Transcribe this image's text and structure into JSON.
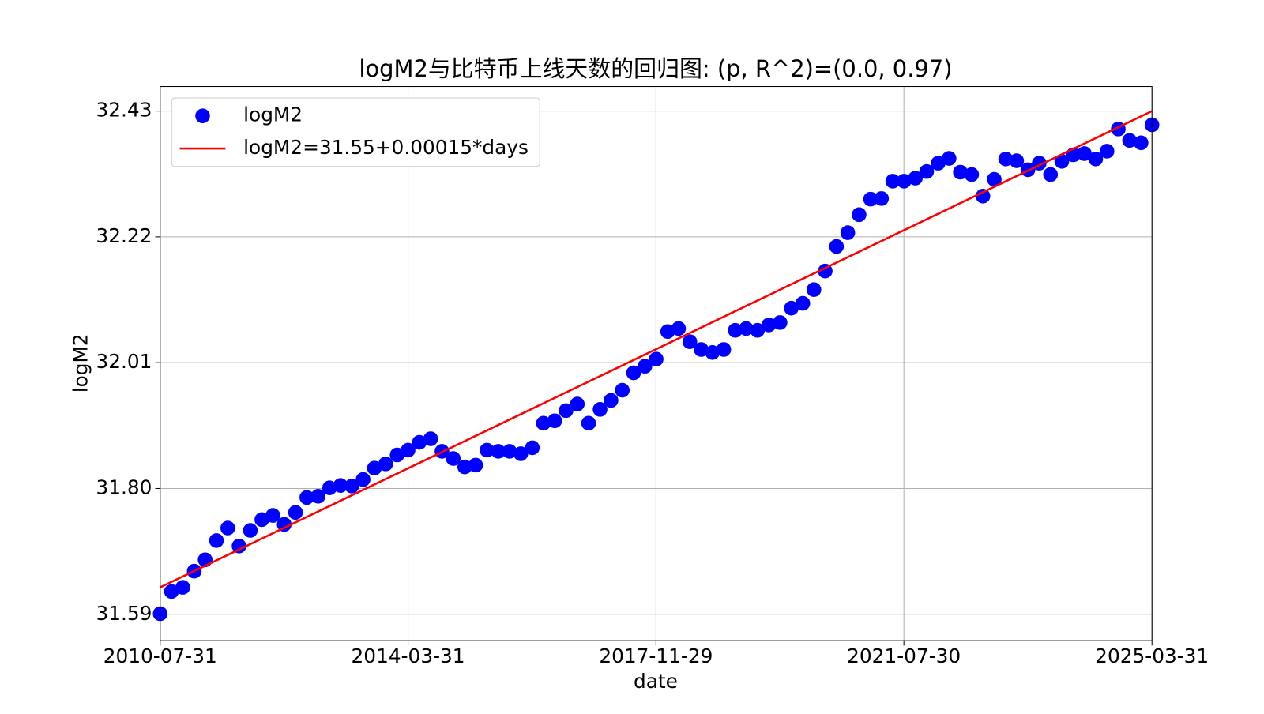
{
  "chart_data": {
    "type": "scatter",
    "title": "logM2与比特币上线天数的回归图: (p, R^2)=(0.0, 0.97)",
    "x_label": "date",
    "y_label": "logM2",
    "x": [
      "2010-07-31",
      "2010-09-30",
      "2010-11-30",
      "2011-01-31",
      "2011-03-31",
      "2011-05-31",
      "2011-07-31",
      "2011-09-30",
      "2011-11-30",
      "2012-01-31",
      "2012-03-31",
      "2012-05-31",
      "2012-07-31",
      "2012-09-30",
      "2012-11-30",
      "2013-01-31",
      "2013-03-31",
      "2013-05-31",
      "2013-07-31",
      "2013-09-30",
      "2013-11-30",
      "2014-01-31",
      "2014-03-31",
      "2014-05-31",
      "2014-07-31",
      "2014-09-30",
      "2014-11-30",
      "2015-01-31",
      "2015-03-31",
      "2015-05-31",
      "2015-07-31",
      "2015-09-30",
      "2015-11-30",
      "2016-01-31",
      "2016-03-31",
      "2016-05-31",
      "2016-07-31",
      "2016-09-30",
      "2016-11-30",
      "2017-01-31",
      "2017-03-31",
      "2017-05-31",
      "2017-07-31",
      "2017-09-30",
      "2017-11-30",
      "2018-01-31",
      "2018-03-31",
      "2018-05-31",
      "2018-07-31",
      "2018-09-30",
      "2018-11-30",
      "2019-01-31",
      "2019-03-31",
      "2019-05-31",
      "2019-07-31",
      "2019-09-30",
      "2019-11-30",
      "2020-01-31",
      "2020-03-31",
      "2020-05-31",
      "2020-07-31",
      "2020-09-30",
      "2020-11-30",
      "2021-01-31",
      "2021-03-31",
      "2021-05-31",
      "2021-07-31",
      "2021-09-30",
      "2021-11-30",
      "2022-01-31",
      "2022-03-31",
      "2022-05-31",
      "2022-07-31",
      "2022-09-30",
      "2022-11-30",
      "2023-01-31",
      "2023-03-31",
      "2023-05-31",
      "2023-07-31",
      "2023-09-30",
      "2023-11-30",
      "2024-01-31",
      "2024-03-31",
      "2024-05-31",
      "2024-07-31",
      "2024-09-30",
      "2024-11-30",
      "2025-01-31",
      "2025-03-31"
    ],
    "series": [
      {
        "name": "logM2",
        "color": "#0000ff",
        "values": [
          31.591,
          31.628,
          31.635,
          31.662,
          31.681,
          31.713,
          31.734,
          31.704,
          31.73,
          31.748,
          31.755,
          31.74,
          31.76,
          31.785,
          31.787,
          31.801,
          31.805,
          31.804,
          31.815,
          31.834,
          31.841,
          31.856,
          31.864,
          31.877,
          31.883,
          31.862,
          31.85,
          31.836,
          31.839,
          31.864,
          31.862,
          31.862,
          31.858,
          31.868,
          31.909,
          31.913,
          31.93,
          31.941,
          31.909,
          31.932,
          31.947,
          31.964,
          31.993,
          32.004,
          32.016,
          32.062,
          32.067,
          32.045,
          32.032,
          32.027,
          32.032,
          32.064,
          32.067,
          32.064,
          32.073,
          32.077,
          32.101,
          32.109,
          32.132,
          32.163,
          32.204,
          32.227,
          32.257,
          32.283,
          32.284,
          32.313,
          32.313,
          32.318,
          32.329,
          32.343,
          32.351,
          32.328,
          32.324,
          32.288,
          32.316,
          32.35,
          32.347,
          32.332,
          32.343,
          32.324,
          32.346,
          32.357,
          32.359,
          32.35,
          32.363,
          32.4,
          32.381,
          32.377,
          32.407
        ]
      },
      {
        "name": "logM2=31.55+0.00015*days",
        "color": "#ff0000",
        "type": "line",
        "x": [
          "2010-07-31",
          "2025-03-31"
        ],
        "values": [
          31.635,
          32.43
        ]
      }
    ],
    "xlim": [
      "2010-07-31",
      "2025-03-31"
    ],
    "xticks": [
      "2010-07-31",
      "2014-03-31",
      "2017-11-29",
      "2021-07-30",
      "2025-03-31"
    ],
    "ylim": [
      31.546,
      32.471
    ],
    "yticks": [
      31.59,
      {
        "value": 31.8,
        "label": "31.80"
      },
      32.01,
      32.22,
      32.43
    ],
    "grid": true,
    "legend": "upper left"
  }
}
